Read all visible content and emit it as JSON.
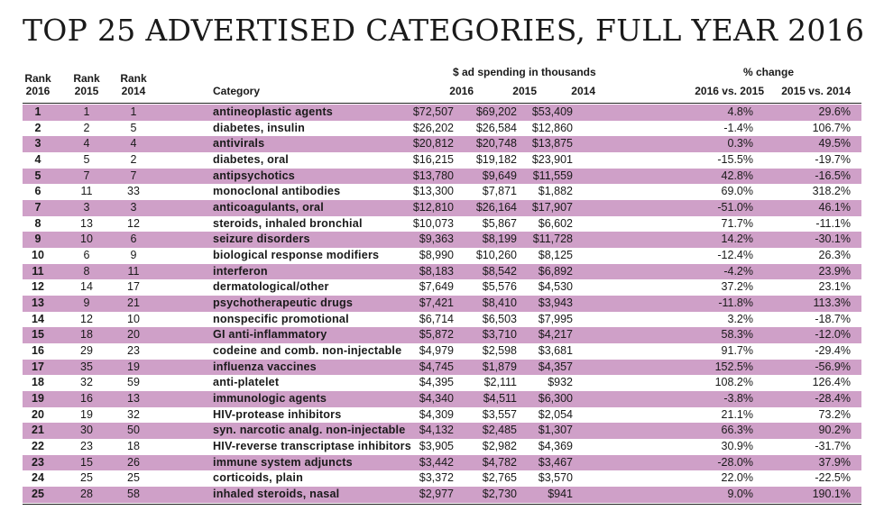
{
  "title": "TOP 25 ADVERTISED CATEGORIES, FULL YEAR 2016",
  "headers": {
    "rank2016": [
      "Rank",
      "2016"
    ],
    "rank2015": [
      "Rank",
      "2015"
    ],
    "rank2014": [
      "Rank",
      "2014"
    ],
    "category": "Category",
    "spending_group": "$ ad spending in thousands",
    "s2016": "2016",
    "s2015": "2015",
    "s2014": "2014",
    "change_group": "% change",
    "c1": "2016 vs. 2015",
    "c2": "2015 vs. 2014"
  },
  "colors": {
    "shaded_row": "#cfa0c8",
    "text": "#1a1a1a"
  },
  "rows": [
    {
      "r16": "1",
      "r15": "1",
      "r14": "1",
      "cat": "antineoplastic agents",
      "s16": "$72,507",
      "s15": "$69,202",
      "s14": "$53,409",
      "p1": "4.8%",
      "p2": "29.6%"
    },
    {
      "r16": "2",
      "r15": "2",
      "r14": "5",
      "cat": "diabetes, insulin",
      "s16": "$26,202",
      "s15": "$26,584",
      "s14": "$12,860",
      "p1": "-1.4%",
      "p2": "106.7%"
    },
    {
      "r16": "3",
      "r15": "4",
      "r14": "4",
      "cat": "antivirals",
      "s16": "$20,812",
      "s15": "$20,748",
      "s14": "$13,875",
      "p1": "0.3%",
      "p2": "49.5%"
    },
    {
      "r16": "4",
      "r15": "5",
      "r14": "2",
      "cat": "diabetes, oral",
      "s16": "$16,215",
      "s15": "$19,182",
      "s14": "$23,901",
      "p1": "-15.5%",
      "p2": "-19.7%"
    },
    {
      "r16": "5",
      "r15": "7",
      "r14": "7",
      "cat": "antipsychotics",
      "s16": "$13,780",
      "s15": "$9,649",
      "s14": "$11,559",
      "p1": "42.8%",
      "p2": "-16.5%"
    },
    {
      "r16": "6",
      "r15": "11",
      "r14": "33",
      "cat": "monoclonal antibodies",
      "s16": "$13,300",
      "s15": "$7,871",
      "s14": "$1,882",
      "p1": "69.0%",
      "p2": "318.2%"
    },
    {
      "r16": "7",
      "r15": "3",
      "r14": "3",
      "cat": "anticoagulants, oral",
      "s16": "$12,810",
      "s15": "$26,164",
      "s14": "$17,907",
      "p1": "-51.0%",
      "p2": "46.1%"
    },
    {
      "r16": "8",
      "r15": "13",
      "r14": "12",
      "cat": "steroids, inhaled bronchial",
      "s16": "$10,073",
      "s15": "$5,867",
      "s14": "$6,602",
      "p1": "71.7%",
      "p2": "-11.1%"
    },
    {
      "r16": "9",
      "r15": "10",
      "r14": "6",
      "cat": "seizure disorders",
      "s16": "$9,363",
      "s15": "$8,199",
      "s14": "$11,728",
      "p1": "14.2%",
      "p2": "-30.1%"
    },
    {
      "r16": "10",
      "r15": "6",
      "r14": "9",
      "cat": "biological response modifiers",
      "s16": "$8,990",
      "s15": "$10,260",
      "s14": "$8,125",
      "p1": "-12.4%",
      "p2": "26.3%"
    },
    {
      "r16": "11",
      "r15": "8",
      "r14": "11",
      "cat": "interferon",
      "s16": "$8,183",
      "s15": "$8,542",
      "s14": "$6,892",
      "p1": "-4.2%",
      "p2": "23.9%"
    },
    {
      "r16": "12",
      "r15": "14",
      "r14": "17",
      "cat": "dermatological/other",
      "s16": "$7,649",
      "s15": "$5,576",
      "s14": "$4,530",
      "p1": "37.2%",
      "p2": "23.1%"
    },
    {
      "r16": "13",
      "r15": "9",
      "r14": "21",
      "cat": "psychotherapeutic drugs",
      "s16": "$7,421",
      "s15": "$8,410",
      "s14": "$3,943",
      "p1": "-11.8%",
      "p2": "113.3%"
    },
    {
      "r16": "14",
      "r15": "12",
      "r14": "10",
      "cat": "nonspecific promotional",
      "s16": "$6,714",
      "s15": "$6,503",
      "s14": "$7,995",
      "p1": "3.2%",
      "p2": "-18.7%"
    },
    {
      "r16": "15",
      "r15": "18",
      "r14": "20",
      "cat": "GI anti-inflammatory",
      "s16": "$5,872",
      "s15": "$3,710",
      "s14": "$4,217",
      "p1": "58.3%",
      "p2": "-12.0%"
    },
    {
      "r16": "16",
      "r15": "29",
      "r14": "23",
      "cat": "codeine and comb. non-injectable",
      "s16": "$4,979",
      "s15": "$2,598",
      "s14": "$3,681",
      "p1": "91.7%",
      "p2": "-29.4%"
    },
    {
      "r16": "17",
      "r15": "35",
      "r14": "19",
      "cat": "influenza vaccines",
      "s16": "$4,745",
      "s15": "$1,879",
      "s14": "$4,357",
      "p1": "152.5%",
      "p2": "-56.9%"
    },
    {
      "r16": "18",
      "r15": "32",
      "r14": "59",
      "cat": "anti-platelet",
      "s16": "$4,395",
      "s15": "$2,111",
      "s14": "$932",
      "p1": "108.2%",
      "p2": "126.4%"
    },
    {
      "r16": "19",
      "r15": "16",
      "r14": "13",
      "cat": "immunologic agents",
      "s16": "$4,340",
      "s15": "$4,511",
      "s14": "$6,300",
      "p1": "-3.8%",
      "p2": "-28.4%"
    },
    {
      "r16": "20",
      "r15": "19",
      "r14": "32",
      "cat": "HIV-protease inhibitors",
      "s16": "$4,309",
      "s15": "$3,557",
      "s14": "$2,054",
      "p1": "21.1%",
      "p2": "73.2%"
    },
    {
      "r16": "21",
      "r15": "30",
      "r14": "50",
      "cat": "syn. narcotic analg. non-injectable",
      "s16": "$4,132",
      "s15": "$2,485",
      "s14": "$1,307",
      "p1": "66.3%",
      "p2": "90.2%"
    },
    {
      "r16": "22",
      "r15": "23",
      "r14": "18",
      "cat": "HIV-reverse transcriptase inhibitors",
      "s16": "$3,905",
      "s15": "$2,982",
      "s14": "$4,369",
      "p1": "30.9%",
      "p2": "-31.7%"
    },
    {
      "r16": "23",
      "r15": "15",
      "r14": "26",
      "cat": "immune system adjuncts",
      "s16": "$3,442",
      "s15": "$4,782",
      "s14": "$3,467",
      "p1": "-28.0%",
      "p2": "37.9%"
    },
    {
      "r16": "24",
      "r15": "25",
      "r14": "25",
      "cat": "corticoids, plain",
      "s16": "$3,372",
      "s15": "$2,765",
      "s14": "$3,570",
      "p1": "22.0%",
      "p2": "-22.5%"
    },
    {
      "r16": "25",
      "r15": "28",
      "r14": "58",
      "cat": "inhaled steroids, nasal",
      "s16": "$2,977",
      "s15": "$2,730",
      "s14": "$941",
      "p1": "9.0%",
      "p2": "190.1%"
    }
  ]
}
